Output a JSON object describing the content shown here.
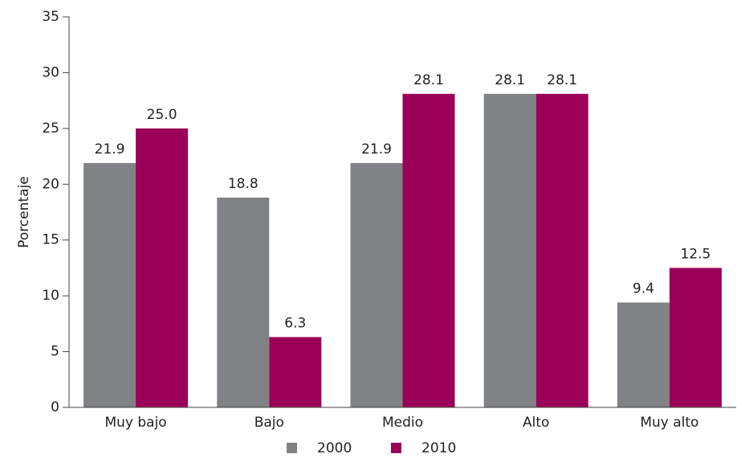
{
  "chart_data": {
    "type": "bar",
    "y_label": "Porcentaje",
    "categories": [
      "Muy bajo",
      "Bajo",
      "Medio",
      "Alto",
      "Muy alto"
    ],
    "series": [
      {
        "name": "2000",
        "color": "#808285",
        "values": [
          21.9,
          18.8,
          21.9,
          28.1,
          9.4
        ],
        "value_labels": [
          "21.9",
          "18.8",
          "21.9",
          "28.1",
          "9.4"
        ]
      },
      {
        "name": "2010",
        "color": "#9b0058",
        "values": [
          25,
          6.3,
          28.1,
          28.1,
          12.5
        ],
        "value_labels": [
          "25.0",
          "6.3",
          "28.1",
          "28.1",
          "12.5"
        ]
      }
    ],
    "ylim": [
      0,
      35
    ],
    "yticks": [
      0,
      5,
      10,
      15,
      20,
      25,
      30,
      35
    ],
    "legend": "bottom"
  }
}
